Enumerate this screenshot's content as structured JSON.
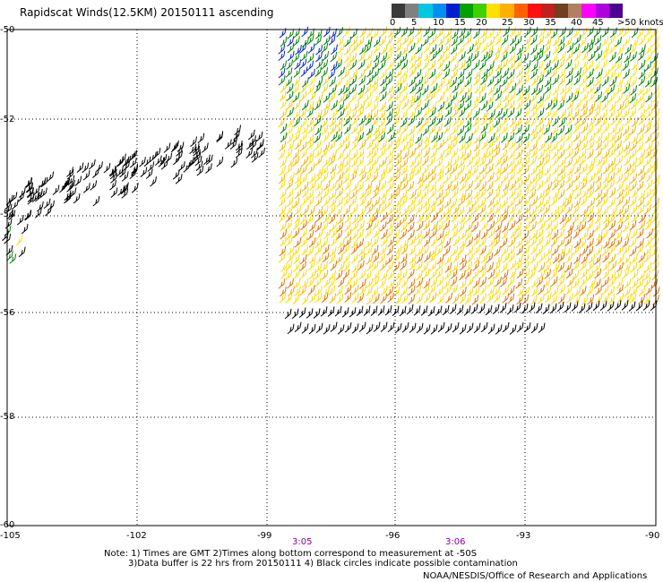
{
  "title": "Rapidscat Winds(12.5KM) 20150111 ascending",
  "colorbar": {
    "colors": [
      "#3a3a3a",
      "#808080",
      "#00c8e0",
      "#0090f0",
      "#0020d0",
      "#00a000",
      "#40d000",
      "#ffe000",
      "#ffb000",
      "#ff6000",
      "#ff1010",
      "#c02020",
      "#704020",
      "#b08060",
      "#ff00ff",
      "#b000e0",
      "#500090"
    ],
    "labels": [
      "0",
      "5",
      "10",
      "15",
      "20",
      "25",
      "30",
      "35",
      "40",
      "45",
      ">50 knots"
    ]
  },
  "axes": {
    "x_labels": [
      "-105",
      "-102",
      "-99",
      "-96",
      "-93",
      "-90"
    ],
    "y_labels": [
      "-50",
      "-52",
      "-54",
      "-56",
      "-58",
      "-60"
    ]
  },
  "times": [
    "3:05",
    "3:06"
  ],
  "note": {
    "line1": "Note: 1) Times are GMT 2)Times along bottom correspond to measurement at -50S",
    "line2": "3)Data buffer is 22 hrs from 20150111 4) Black circles indicate possible contamination"
  },
  "credit": "NOAA/NESDIS/Office of Research and Applications"
}
